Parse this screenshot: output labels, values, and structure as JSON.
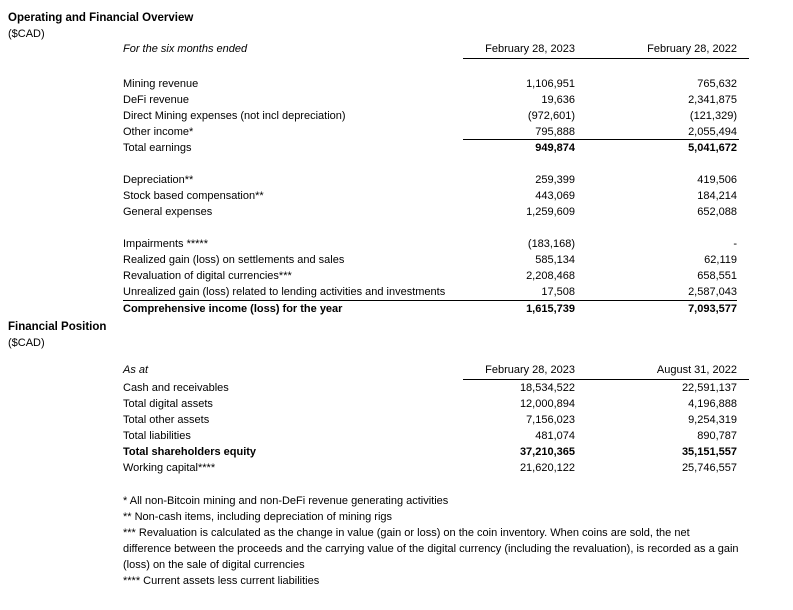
{
  "section1": {
    "title": "Operating and Financial Overview",
    "currency": "($CAD)",
    "table": {
      "period_label": "For the six months ended",
      "col1": "February 28, 2023",
      "col2": "February 28, 2022",
      "rows": [
        {
          "label": "Mining revenue",
          "v1": "1,106,951",
          "v2": "765,632"
        },
        {
          "label": "DeFi revenue",
          "v1": "19,636",
          "v2": "2,341,875"
        },
        {
          "label": "Direct Mining expenses (not incl depreciation)",
          "v1": "(972,601)",
          "v2": "(121,329)"
        },
        {
          "label": "Other income*",
          "v1": "795,888",
          "v2": "2,055,494"
        },
        {
          "label": "Total earnings",
          "v1": "949,874",
          "v2": "5,041,672"
        },
        {
          "label": "Depreciation**",
          "v1": "259,399",
          "v2": "419,506"
        },
        {
          "label": "Stock based compensation**",
          "v1": "443,069",
          "v2": "184,214"
        },
        {
          "label": "General expenses",
          "v1": "1,259,609",
          "v2": "652,088"
        },
        {
          "label": "Impairments *****",
          "v1": "(183,168)",
          "v2": "-"
        },
        {
          "label": "Realized gain (loss) on settlements and sales",
          "v1": "585,134",
          "v2": "62,119"
        },
        {
          "label": "Revaluation of digital currencies***",
          "v1": "2,208,468",
          "v2": "658,551"
        },
        {
          "label": "Unrealized gain (loss) related to lending activities and investments",
          "v1": "17,508",
          "v2": "2,587,043"
        },
        {
          "label": "Comprehensive income (loss) for the year",
          "v1": "1,615,739",
          "v2": "7,093,577"
        }
      ]
    }
  },
  "section2": {
    "title": "Financial Position",
    "currency": "($CAD)",
    "table": {
      "period_label": "As at",
      "col1": "February 28, 2023",
      "col2": "August 31, 2022",
      "rows": [
        {
          "label": "Cash and receivables",
          "v1": "18,534,522",
          "v2": "22,591,137"
        },
        {
          "label": "Total digital assets",
          "v1": "12,000,894",
          "v2": "4,196,888"
        },
        {
          "label": "Total other assets",
          "v1": "7,156,023",
          "v2": "9,254,319"
        },
        {
          "label": "Total liabilities",
          "v1": "481,074",
          "v2": "890,787"
        },
        {
          "label": "Total shareholders equity",
          "v1": "37,210,365",
          "v2": "35,151,557"
        },
        {
          "label": "Working capital****",
          "v1": "21,620,122",
          "v2": "25,746,557"
        }
      ]
    }
  },
  "footnotes": [
    "* All non-Bitcoin mining and non-DeFi revenue generating activities",
    "** Non-cash items, including depreciation of mining rigs",
    "***  Revaluation is calculated as the change in value (gain or loss) on the coin inventory. When coins are sold, the net difference between the proceeds and the carrying value of the digital currency (including the revaluation), is recorded as a gain (loss) on the sale of digital currencies",
    "**** Current assets less current liabilities"
  ]
}
